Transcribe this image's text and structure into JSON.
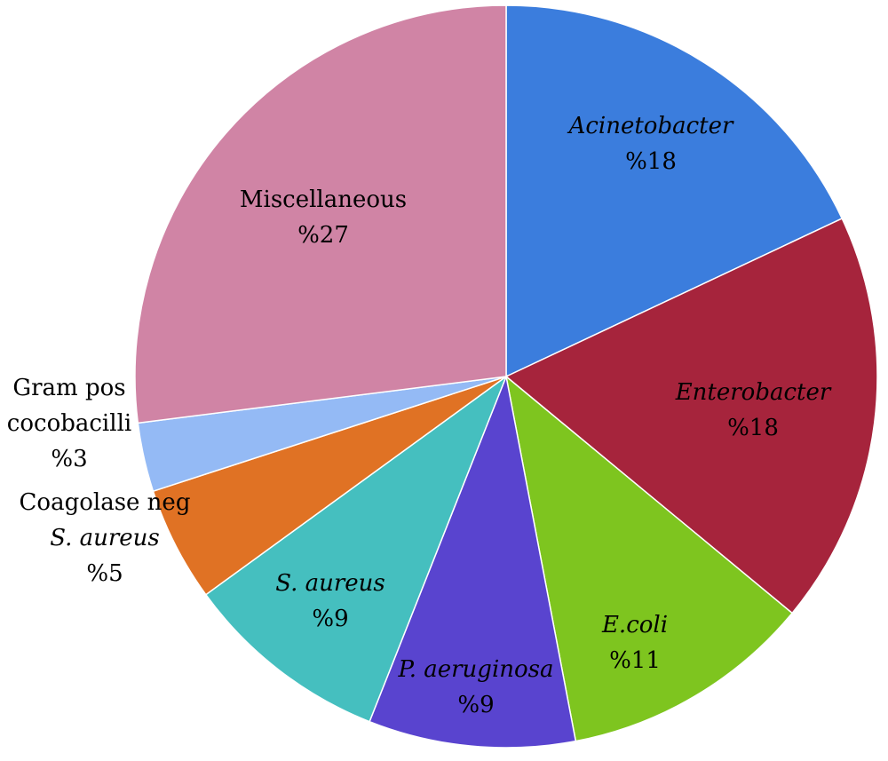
{
  "chart_data": {
    "type": "pie",
    "start_angle_deg": 0,
    "direction": "clockwise",
    "slices": [
      {
        "lines": [
          "Acinetobacter"
        ],
        "pct_text": "%18",
        "value": 18,
        "color": "#3b7ddd",
        "italic": true,
        "label_outside": false
      },
      {
        "lines": [
          "Enterobacter"
        ],
        "pct_text": "%18",
        "value": 18,
        "color": "#a6243c",
        "italic": true,
        "label_outside": false
      },
      {
        "lines": [
          "E.coli"
        ],
        "pct_text": "%11",
        "value": 11,
        "color": "#7ec51f",
        "italic": true,
        "label_outside": false
      },
      {
        "lines": [
          "P. aeruginosa"
        ],
        "pct_text": "%9",
        "value": 9,
        "color": "#5944cf",
        "italic": true,
        "label_outside": false
      },
      {
        "lines": [
          "S. aureus"
        ],
        "pct_text": "%9",
        "value": 9,
        "color": "#45bfbf",
        "italic": true,
        "label_outside": false
      },
      {
        "lines": [
          "Coagolase neg",
          "S. aureus"
        ],
        "pct_text": "%5",
        "value": 5,
        "color": "#e07224",
        "italic": false,
        "italic_lines": [
          false,
          true
        ],
        "label_outside": true
      },
      {
        "lines": [
          "Gram pos",
          "cocobacilli"
        ],
        "pct_text": "%3",
        "value": 3,
        "color": "#94baf5",
        "italic": false,
        "label_outside": true
      },
      {
        "lines": [
          "Miscellaneous"
        ],
        "pct_text": "%27",
        "value": 27,
        "color": "#d084a5",
        "italic": false,
        "label_outside": false
      }
    ]
  }
}
